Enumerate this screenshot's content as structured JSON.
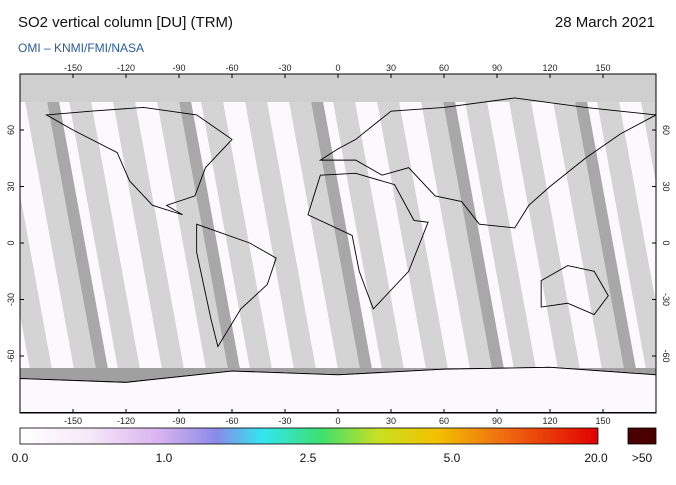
{
  "header": {
    "title": "SO2 vertical column [DU] (TRM)",
    "date": "28 March 2021",
    "source": "OMI  –  KNMI/FMI/NASA"
  },
  "map": {
    "lon_ticks": [
      -150,
      -120,
      -90,
      -60,
      -30,
      0,
      30,
      60,
      90,
      120,
      150
    ],
    "lat_ticks": [
      60,
      30,
      0,
      -30,
      -60
    ]
  },
  "colorbar": {
    "labels": [
      "0.0",
      "1.0",
      "2.5",
      "5.0",
      "20.0"
    ],
    "overflow_label": ">50"
  }
}
